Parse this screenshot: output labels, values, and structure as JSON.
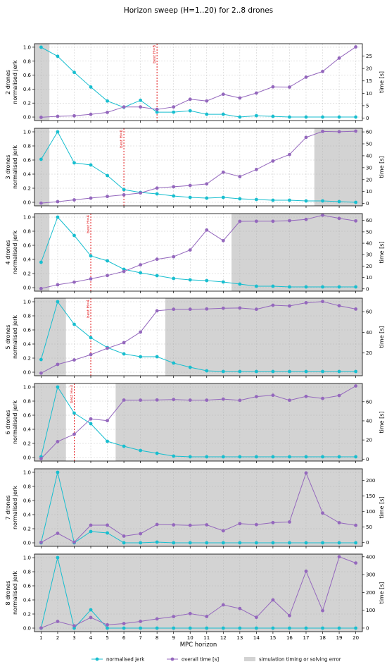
{
  "chart_data": {
    "type": "line",
    "title": "Horizon sweep (H=1..20) for 2..8 drones",
    "xlabel": "MPC horizon",
    "x": [
      1,
      2,
      3,
      4,
      5,
      6,
      7,
      8,
      9,
      10,
      11,
      12,
      13,
      14,
      15,
      16,
      17,
      18,
      19,
      20
    ],
    "grid": true,
    "legend": {
      "placement": "bottom-center",
      "entries": [
        "normalised jerk",
        "overall time [s]",
        "simulation timing or solving error"
      ]
    },
    "colors": {
      "jerk": "#17becf",
      "time": "#9467bd",
      "error_band": "#d3d3d3",
      "best_line": "#e31a1c"
    },
    "panels": [
      {
        "ylabel_left": "2 drones\nnormalised jerk",
        "ylabel_right": "time [s]",
        "ylim_left": [
          -0.05,
          1.05
        ],
        "ylim_right": [
          -1,
          30
        ],
        "yticks_right": [
          0,
          5,
          10,
          15,
          20,
          25
        ],
        "best_label": "best H=8",
        "best_x": 8,
        "error_regions": [
          [
            0.6,
            1.5
          ]
        ],
        "series": [
          {
            "name": "normalised jerk",
            "values": [
              1.0,
              0.87,
              0.64,
              0.43,
              0.23,
              0.14,
              0.24,
              0.07,
              0.07,
              0.09,
              0.04,
              0.04,
              0.0,
              0.02,
              0.01,
              0.0,
              0.0,
              0.0,
              0.0,
              0.0
            ]
          },
          {
            "name": "overall time [s]",
            "values": [
              0.3,
              0.7,
              0.9,
              1.5,
              2.3,
              4.5,
              4.5,
              3.5,
              4.5,
              7.6,
              6.9,
              9.6,
              8.1,
              10.1,
              12.6,
              12.5,
              16.5,
              18.8,
              24.2,
              28.7
            ]
          }
        ]
      },
      {
        "ylabel_left": "3 drones\nnormalised jerk",
        "ylabel_right": "time [s]",
        "ylim_left": [
          -0.05,
          1.05
        ],
        "ylim_right": [
          -2,
          63
        ],
        "yticks_right": [
          0,
          10,
          20,
          30,
          40,
          50,
          60
        ],
        "best_label": "best H=6",
        "best_x": 6,
        "error_regions": [
          [
            0.6,
            1.5
          ],
          [
            17.5,
            20.4
          ]
        ],
        "series": [
          {
            "name": "normalised jerk",
            "values": [
              0.61,
              1.0,
              0.56,
              0.53,
              0.38,
              0.18,
              0.14,
              0.12,
              0.09,
              0.07,
              0.06,
              0.07,
              0.05,
              0.04,
              0.03,
              0.03,
              0.02,
              0.02,
              0.01,
              0.0
            ]
          },
          {
            "name": "overall time [s]",
            "values": [
              0.3,
              1.5,
              3.0,
              4.5,
              5.9,
              7.2,
              8.8,
              12.9,
              14.0,
              15.1,
              16.4,
              26.2,
              22.5,
              28.5,
              35.6,
              41.0,
              55.4,
              60.4,
              60.1,
              60.6
            ]
          }
        ]
      },
      {
        "ylabel_left": "4 drones\nnormalised jerk",
        "ylabel_right": "time [s]",
        "ylim_left": [
          -0.05,
          1.05
        ],
        "ylim_right": [
          -2,
          66
        ],
        "yticks_right": [
          0,
          10,
          20,
          30,
          40,
          50,
          60
        ],
        "best_label": "best H=4",
        "best_x": 4,
        "error_regions": [
          [
            0.6,
            1.5
          ],
          [
            12.5,
            20.4
          ]
        ],
        "series": [
          {
            "name": "normalised jerk",
            "values": [
              0.36,
              1.0,
              0.74,
              0.45,
              0.38,
              0.26,
              0.21,
              0.17,
              0.13,
              0.11,
              0.1,
              0.08,
              0.05,
              0.02,
              0.02,
              0.01,
              0.01,
              0.01,
              0.01,
              0.01
            ]
          },
          {
            "name": "overall time [s]",
            "values": [
              0.3,
              3.6,
              5.9,
              8.8,
              11.7,
              15.3,
              21.1,
              26.0,
              28.2,
              34.1,
              51.6,
              42.3,
              59.2,
              59.3,
              59.3,
              59.8,
              60.9,
              64.6,
              61.8,
              59.6
            ]
          }
        ]
      },
      {
        "ylabel_left": "5 drones\nnormalised jerk",
        "ylabel_right": "time [s]",
        "ylim_left": [
          -0.05,
          1.05
        ],
        "ylim_right": [
          -2,
          73
        ],
        "yticks_right": [
          20,
          40,
          60
        ],
        "best_label": "best H=4",
        "best_x": 4,
        "error_regions": [
          [
            0.6,
            2.5
          ],
          [
            8.5,
            20.4
          ]
        ],
        "series": [
          {
            "name": "normalised jerk",
            "values": [
              0.18,
              1.0,
              0.68,
              0.49,
              0.35,
              0.26,
              0.22,
              0.22,
              0.13,
              0.07,
              0.02,
              0.01,
              0.01,
              0.01,
              0.01,
              0.01,
              0.01,
              0.01,
              0.01,
              0.01
            ]
          },
          {
            "name": "overall time [s]",
            "values": [
              0.5,
              9.0,
              13.3,
              18.4,
              24.6,
              30.0,
              40.2,
              60.8,
              62.3,
              62.3,
              62.6,
              63.3,
              63.5,
              62.3,
              66.2,
              65.5,
              68.6,
              69.8,
              65.7,
              62.5
            ]
          }
        ]
      },
      {
        "ylabel_left": "6 drones\nnormalised jerk",
        "ylabel_right": "time [s]",
        "ylim_left": [
          -0.05,
          1.05
        ],
        "ylim_right": [
          -2,
          79
        ],
        "yticks_right": [
          0,
          20,
          40,
          60
        ],
        "best_label": "best H=3",
        "best_x": 3,
        "error_regions": [
          [
            0.6,
            2.5
          ],
          [
            5.5,
            20.4
          ]
        ],
        "series": [
          {
            "name": "normalised jerk",
            "values": [
              0.01,
              1.0,
              0.63,
              0.48,
              0.23,
              0.16,
              0.1,
              0.06,
              0.02,
              0.01,
              0.01,
              0.01,
              0.01,
              0.01,
              0.01,
              0.01,
              0.01,
              0.01,
              0.01,
              0.01
            ]
          },
          {
            "name": "overall time [s]",
            "values": [
              0.5,
              18.3,
              26.0,
              42.0,
              40.2,
              61.7,
              61.6,
              61.8,
              62.3,
              61.6,
              61.6,
              62.7,
              61.4,
              65.3,
              66.7,
              61.5,
              65.5,
              63.4,
              66.4,
              76.4
            ]
          }
        ]
      },
      {
        "ylabel_left": "7 drones\nnormalised jerk",
        "ylabel_right": "time [s]",
        "ylim_left": [
          -0.05,
          1.05
        ],
        "ylim_right": [
          -12,
          238
        ],
        "yticks_right": [
          0,
          50,
          100,
          150,
          200
        ],
        "best_label": "",
        "best_x": null,
        "error_regions": [
          [
            0.6,
            20.4
          ]
        ],
        "series": [
          {
            "name": "normalised jerk",
            "values": [
              0.0,
              1.0,
              0.0,
              0.16,
              0.14,
              0.0,
              0.0,
              0.01,
              0.0,
              0.0,
              0.0,
              0.0,
              0.0,
              0.0,
              0.0,
              0.0,
              0.0,
              0.0,
              0.0,
              0.0
            ]
          },
          {
            "name": "overall time [s]",
            "values": [
              0.8,
              30.0,
              1.4,
              56.2,
              56.3,
              21.0,
              28.7,
              58.5,
              57.2,
              55.8,
              57.4,
              38.1,
              61.3,
              58.0,
              64.4,
              66.6,
              224.6,
              95.2,
              64.2,
              55.8
            ]
          }
        ]
      },
      {
        "ylabel_left": "8 drones\nnormalised jerk",
        "ylabel_right": "time [s]",
        "ylim_left": [
          -0.05,
          1.05
        ],
        "ylim_right": [
          -20,
          415
        ],
        "yticks_right": [
          0,
          100,
          200,
          300,
          400
        ],
        "best_label": "",
        "best_x": null,
        "error_regions": [
          [
            0.6,
            20.4
          ]
        ],
        "series": [
          {
            "name": "normalised jerk",
            "values": [
              0.0,
              1.0,
              0.0,
              0.26,
              0.0,
              0.0,
              0.0,
              0.0,
              0.0,
              0.0,
              0.0,
              0.0,
              0.0,
              0.0,
              0.0,
              0.0,
              0.0,
              0.0,
              0.0,
              0.0
            ]
          },
          {
            "name": "overall time [s]",
            "values": [
              0.5,
              37.2,
              12.7,
              59.4,
              18.1,
              25.3,
              37.5,
              51.5,
              64.6,
              81.1,
              64.9,
              130.2,
              109.9,
              60.4,
              158.0,
              69.8,
              318.9,
              97.7,
              400.0,
              365.2
            ]
          }
        ]
      }
    ]
  }
}
